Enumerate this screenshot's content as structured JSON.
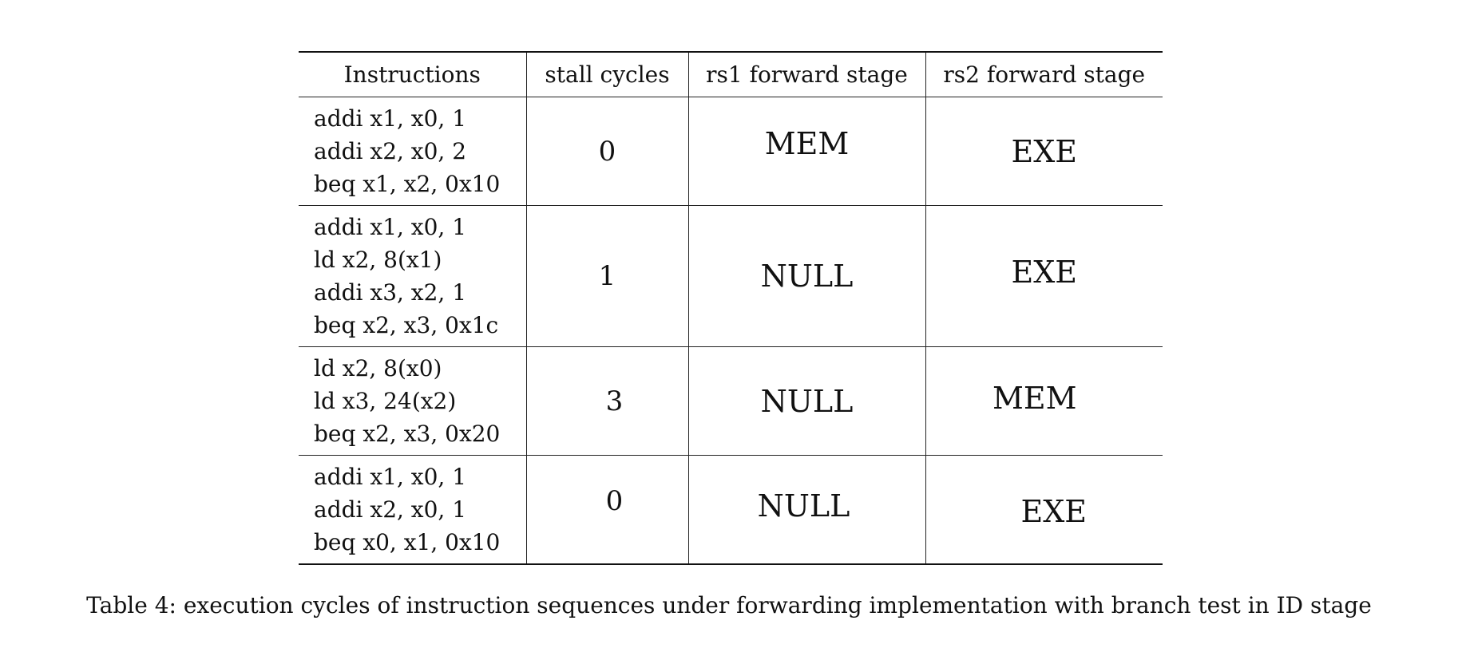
{
  "table": {
    "headers": [
      "Instructions",
      "stall cycles",
      "rs1 forward stage",
      "rs2 forward stage"
    ],
    "rows": [
      {
        "instructions": [
          "addi x1, x0, 1",
          "addi x2, x0, 2",
          "beq x1, x2, 0x10"
        ],
        "stall_cycles": "0",
        "rs1_forward_stage": "MEM",
        "rs2_forward_stage": "EXE"
      },
      {
        "instructions": [
          "addi x1, x0, 1",
          "ld x2, 8(x1)",
          "addi x3, x2, 1",
          "beq x2, x3, 0x1c"
        ],
        "stall_cycles": "1",
        "rs1_forward_stage": "NULL",
        "rs2_forward_stage": "EXE"
      },
      {
        "instructions": [
          "ld x2, 8(x0)",
          "ld x3, 24(x2)",
          "beq x2, x3, 0x20"
        ],
        "stall_cycles": "3",
        "rs1_forward_stage": "NULL",
        "rs2_forward_stage": "MEM"
      },
      {
        "instructions": [
          "addi x1, x0, 1",
          "addi x2, x0, 1",
          "beq x0, x1, 0x10"
        ],
        "stall_cycles": "0",
        "rs1_forward_stage": "NULL",
        "rs2_forward_stage": "EXE"
      }
    ]
  },
  "caption": "Table 4: execution cycles of instruction sequences under forwarding implementation with branch test in ID stage"
}
